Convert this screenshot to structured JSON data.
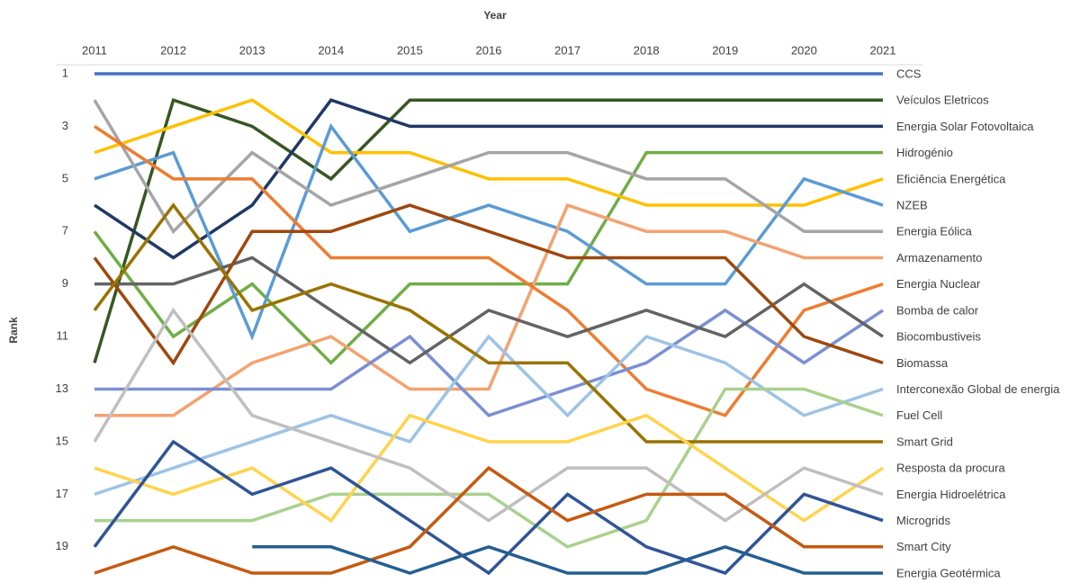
{
  "chart_data": {
    "type": "line",
    "x_title": "Year",
    "y_title": "Rank",
    "x": [
      2011,
      2012,
      2013,
      2014,
      2015,
      2016,
      2017,
      2018,
      2019,
      2020,
      2021
    ],
    "xlim": [
      2011,
      2021
    ],
    "xticks": [
      2011,
      2012,
      2013,
      2014,
      2015,
      2016,
      2017,
      2018,
      2019,
      2020,
      2021
    ],
    "ylim": [
      1,
      20
    ],
    "yticks": [
      1,
      3,
      5,
      7,
      9,
      11,
      13,
      15,
      17,
      19
    ],
    "y_inverted": true,
    "x_axis_position": "top",
    "series": [
      {
        "name": "CCS",
        "color": "#4472c4",
        "values": [
          1,
          1,
          1,
          1,
          1,
          1,
          1,
          1,
          1,
          1,
          1
        ]
      },
      {
        "name": "Veículos Eletricos",
        "color": "#375623",
        "values": [
          12,
          2,
          3,
          5,
          2,
          2,
          2,
          2,
          2,
          2,
          2
        ]
      },
      {
        "name": "Energia Solar Fotovoltaica",
        "color": "#203864",
        "values": [
          6,
          8,
          6,
          2,
          3,
          3,
          3,
          3,
          3,
          3,
          3
        ]
      },
      {
        "name": "Hidrogénio",
        "color": "#70ad47",
        "values": [
          7,
          11,
          9,
          12,
          9,
          9,
          9,
          4,
          4,
          4,
          4
        ]
      },
      {
        "name": "Eficiência Energética",
        "color": "#ffc000",
        "values": [
          4,
          3,
          2,
          4,
          4,
          5,
          5,
          6,
          6,
          6,
          5
        ]
      },
      {
        "name": "NZEB",
        "color": "#5b9bd5",
        "values": [
          5,
          4,
          11,
          3,
          7,
          6,
          7,
          9,
          9,
          5,
          6
        ]
      },
      {
        "name": "Energia Eólica",
        "color": "#a5a5a5",
        "values": [
          2,
          7,
          4,
          6,
          5,
          4,
          4,
          5,
          5,
          7,
          7
        ]
      },
      {
        "name": "Armazenamento",
        "color": "#f4a270",
        "values": [
          14,
          14,
          12,
          11,
          13,
          13,
          6,
          7,
          7,
          8,
          8
        ]
      },
      {
        "name": "Energia Nuclear",
        "color": "#ed7d31",
        "values": [
          3,
          5,
          5,
          8,
          8,
          8,
          10,
          13,
          14,
          10,
          9
        ]
      },
      {
        "name": "Bomba de calor",
        "color": "#7a8fd3",
        "values": [
          13,
          13,
          13,
          13,
          11,
          14,
          13,
          12,
          10,
          12,
          10
        ]
      },
      {
        "name": "Biocombustiveis",
        "color": "#636363",
        "values": [
          9,
          9,
          8,
          10,
          12,
          10,
          11,
          10,
          11,
          9,
          11
        ]
      },
      {
        "name": "Biomassa",
        "color": "#9e480e",
        "values": [
          8,
          12,
          7,
          7,
          6,
          7,
          8,
          8,
          8,
          11,
          12
        ]
      },
      {
        "name": "Interconexão Global de energia",
        "color": "#9dc3e6",
        "values": [
          17,
          16,
          15,
          14,
          15,
          11,
          14,
          11,
          12,
          14,
          13
        ]
      },
      {
        "name": "Fuel Cell",
        "color": "#a9d18e",
        "values": [
          18,
          18,
          18,
          17,
          17,
          17,
          19,
          18,
          13,
          13,
          14
        ]
      },
      {
        "name": "Smart Grid",
        "color": "#997300",
        "values": [
          10,
          6,
          10,
          9,
          10,
          12,
          12,
          15,
          15,
          15,
          15
        ]
      },
      {
        "name": "Resposta da procura",
        "color": "#ffd34d",
        "values": [
          16,
          17,
          16,
          18,
          14,
          15,
          15,
          14,
          16,
          18,
          16
        ]
      },
      {
        "name": "Energia Hidroelétrica",
        "color": "#bfbfbf",
        "values": [
          15,
          10,
          14,
          15,
          16,
          18,
          16,
          16,
          18,
          16,
          17
        ]
      },
      {
        "name": "Microgrids",
        "color": "#2f5597",
        "values": [
          19,
          15,
          17,
          16,
          18,
          20,
          17,
          19,
          20,
          17,
          18
        ]
      },
      {
        "name": "Smart City",
        "color": "#c55a11",
        "values": [
          20,
          19,
          20,
          20,
          19,
          16,
          18,
          17,
          17,
          19,
          19
        ]
      },
      {
        "name": "Energia Geotérmica",
        "color": "#255e91",
        "values": [
          null,
          null,
          19,
          19,
          20,
          19,
          20,
          20,
          19,
          20,
          20
        ]
      }
    ]
  }
}
